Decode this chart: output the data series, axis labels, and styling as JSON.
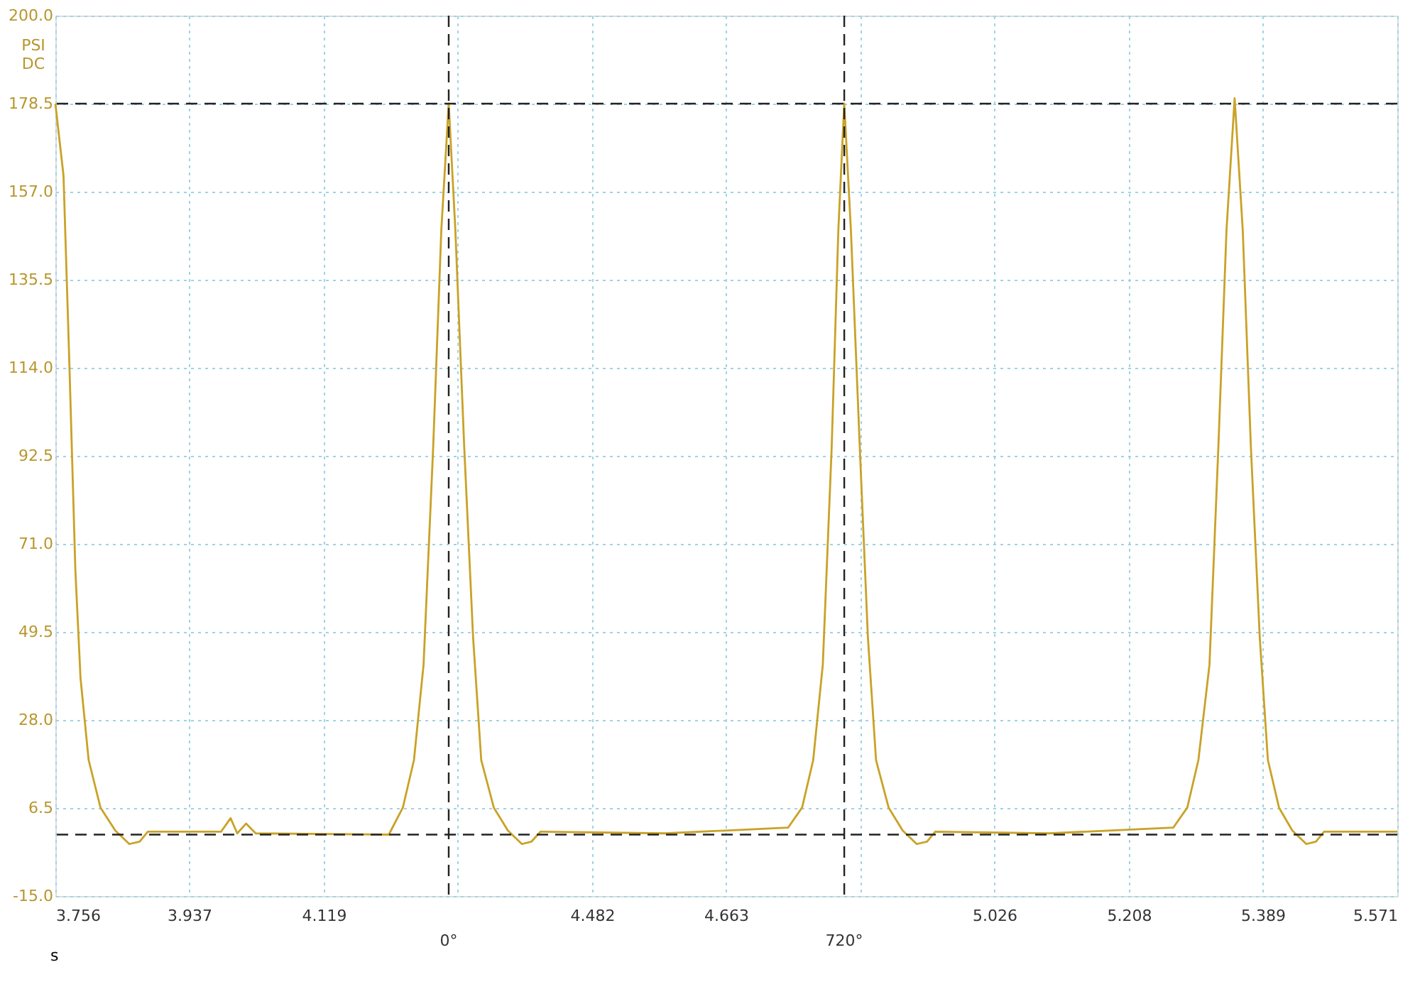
{
  "chart_data": {
    "type": "line",
    "xlabel": "s",
    "ylabel": "PSI\nDC",
    "xlim": [
      3.756,
      5.571
    ],
    "xticks": [
      3.756,
      3.937,
      4.119,
      {
        "value": 4.3,
        "label": null
      },
      4.482,
      4.663,
      {
        "value": 4.845,
        "label": null
      },
      5.026,
      5.208,
      5.389,
      5.571
    ],
    "ylim": [
      -15,
      200
    ],
    "yticks": [
      {
        "value": -15,
        "label": "-15.0"
      },
      6.5,
      {
        "value": 28,
        "label": "28.0"
      },
      49.5,
      {
        "value": 71,
        "label": "71.0"
      },
      92.5,
      {
        "value": 114,
        "label": "114.0"
      },
      135.5,
      {
        "value": 157,
        "label": "157.0"
      },
      178.5,
      {
        "value": 200,
        "label": "200.0"
      }
    ],
    "grid": true,
    "line_style": "solid",
    "series": [
      {
        "color": "#c9a227",
        "x": [
          3.756,
          3.767,
          3.775,
          3.783,
          3.79,
          3.801,
          3.817,
          3.837,
          3.856,
          3.87,
          3.881,
          3.98,
          3.993,
          4.002,
          4.014,
          4.027,
          4.207,
          4.226,
          4.241,
          4.254,
          4.267,
          4.278,
          4.288,
          4.297,
          4.309,
          4.321,
          4.332,
          4.349,
          4.368,
          4.387,
          4.4,
          4.412,
          4.58,
          4.747,
          4.766,
          4.781,
          4.794,
          4.806,
          4.815,
          4.823,
          4.832,
          4.844,
          4.855,
          4.866,
          4.883,
          4.902,
          4.921,
          4.935,
          4.946,
          5.1,
          5.268,
          5.287,
          5.302,
          5.317,
          5.329,
          5.34,
          5.351,
          5.362,
          5.373,
          5.385,
          5.396,
          5.411,
          5.429,
          5.448,
          5.461,
          5.472,
          5.571
        ],
        "values": [
          178.5,
          160.9,
          114.5,
          64.7,
          38.2,
          18.2,
          6.6,
          1.0,
          -2.3,
          -1.7,
          0.7,
          0.7,
          4.0,
          0.3,
          2.7,
          0.3,
          0.0,
          6.6,
          18.2,
          41.5,
          94.6,
          147.6,
          178.5,
          147.6,
          94.6,
          48.1,
          18.2,
          6.6,
          1.0,
          -2.3,
          -1.7,
          0.7,
          0.3,
          1.7,
          6.6,
          18.2,
          41.5,
          94.6,
          147.6,
          178.5,
          147.6,
          94.6,
          48.1,
          18.2,
          6.6,
          1.0,
          -2.3,
          -1.7,
          0.7,
          0.3,
          1.7,
          6.6,
          18.2,
          41.5,
          94.6,
          147.6,
          179.8,
          147.6,
          94.6,
          48.1,
          18.2,
          6.6,
          1.0,
          -2.3,
          -1.7,
          0.7,
          0.7
        ]
      }
    ],
    "ref_lines": [
      {
        "axis": "y",
        "value": 178.5,
        "label": null,
        "color": "#222222",
        "line_style": "dashed"
      },
      {
        "axis": "y",
        "value": 0,
        "label": null,
        "color": "#222222",
        "line_style": "dashed"
      },
      {
        "axis": "x",
        "value": 4.288,
        "label": null,
        "color": "#222222",
        "line_style": "dashed"
      },
      {
        "axis": "x",
        "value": 4.823,
        "label": null,
        "color": "#222222",
        "line_style": "dashed"
      }
    ],
    "annotations": [
      {
        "text": "0°",
        "x": 4.288,
        "y": -15
      },
      {
        "text": "720°",
        "x": 4.823,
        "y": -15
      }
    ]
  }
}
